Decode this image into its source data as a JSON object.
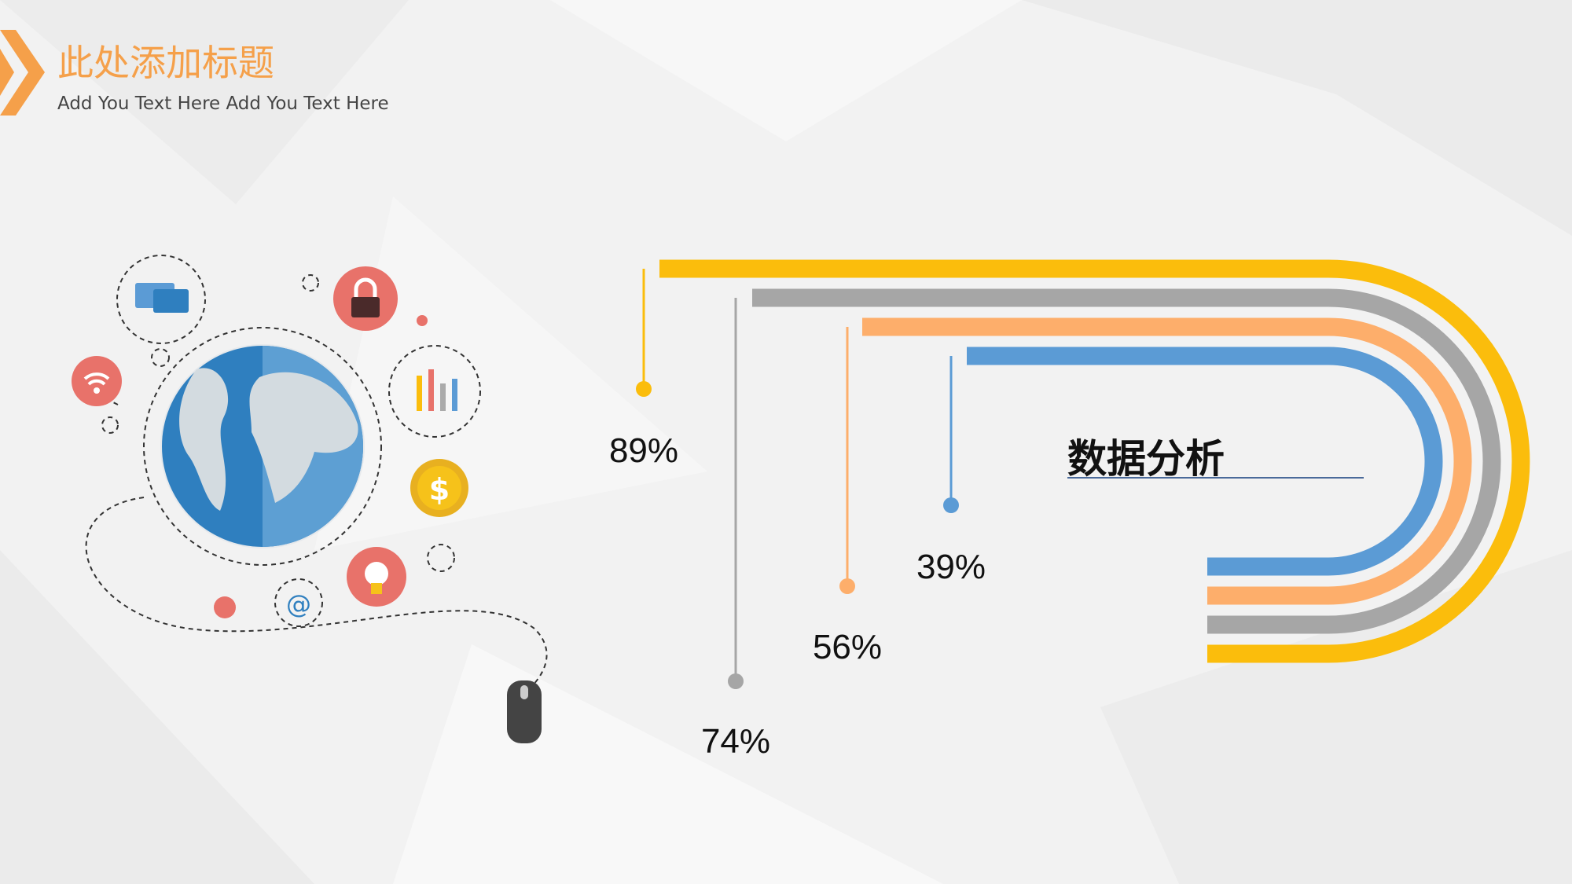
{
  "header": {
    "title": "此处添加标题",
    "subtitle": "Add You Text Here Add You Text Here"
  },
  "center_label": "数据分析",
  "items": [
    {
      "label": "89%",
      "color": "#fbbd0c"
    },
    {
      "label": "74%",
      "color": "#a6a6a6"
    },
    {
      "label": "56%",
      "color": "#fdae6b"
    },
    {
      "label": "39%",
      "color": "#5b9bd5"
    }
  ]
}
